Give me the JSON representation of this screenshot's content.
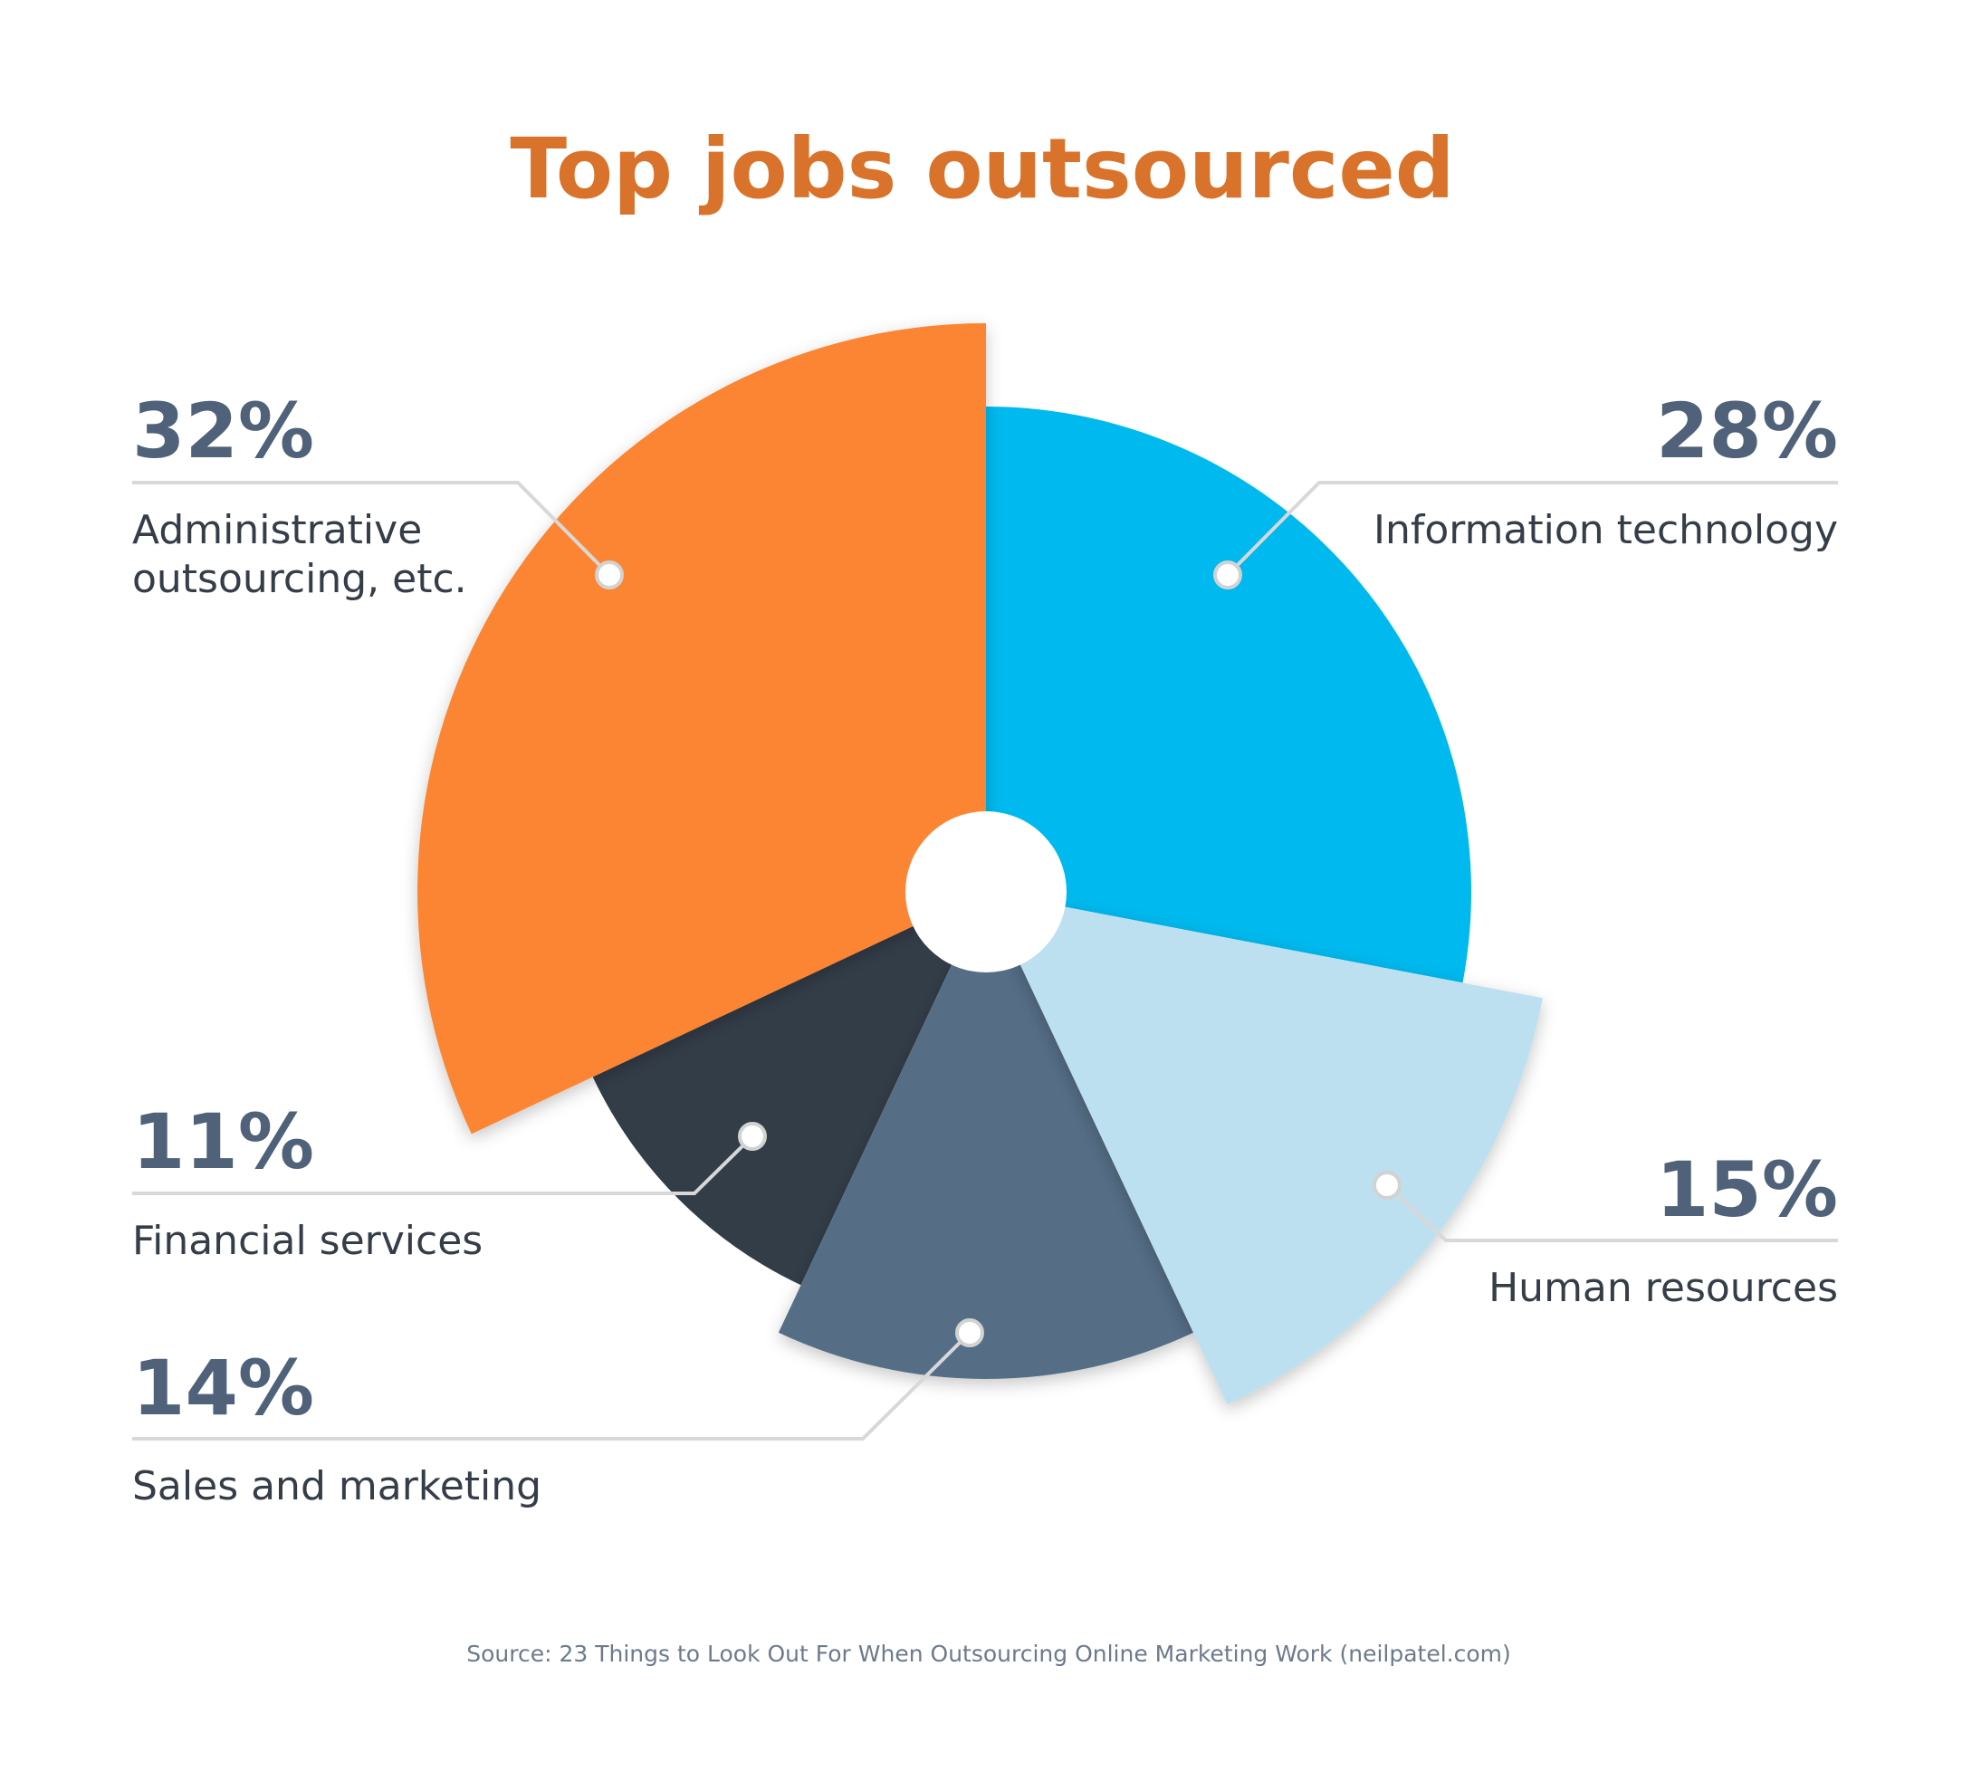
{
  "chart_data": {
    "type": "pie",
    "title": "Top jobs outsourced",
    "source": "Source: 23 Things to Look Out For When Outsourcing Online Marketing Work (neilpatel.com)",
    "slices": [
      {
        "label": "Information technology",
        "value": 28,
        "display": "28%",
        "color": "#00b9ee"
      },
      {
        "label": "Human resources",
        "value": 15,
        "display": "15%",
        "color": "#bde0f1"
      },
      {
        "label": "Sales and marketing",
        "value": 14,
        "display": "14%",
        "color": "#546e86"
      },
      {
        "label": "Financial services",
        "value": 11,
        "display": "11%",
        "color": "#333d48"
      },
      {
        "label": "Administrative outsourcing, etc.",
        "label_lines": [
          "Administrative",
          "outsourcing, etc."
        ],
        "value": 32,
        "display": "32%",
        "color": "#fb8532"
      }
    ]
  }
}
